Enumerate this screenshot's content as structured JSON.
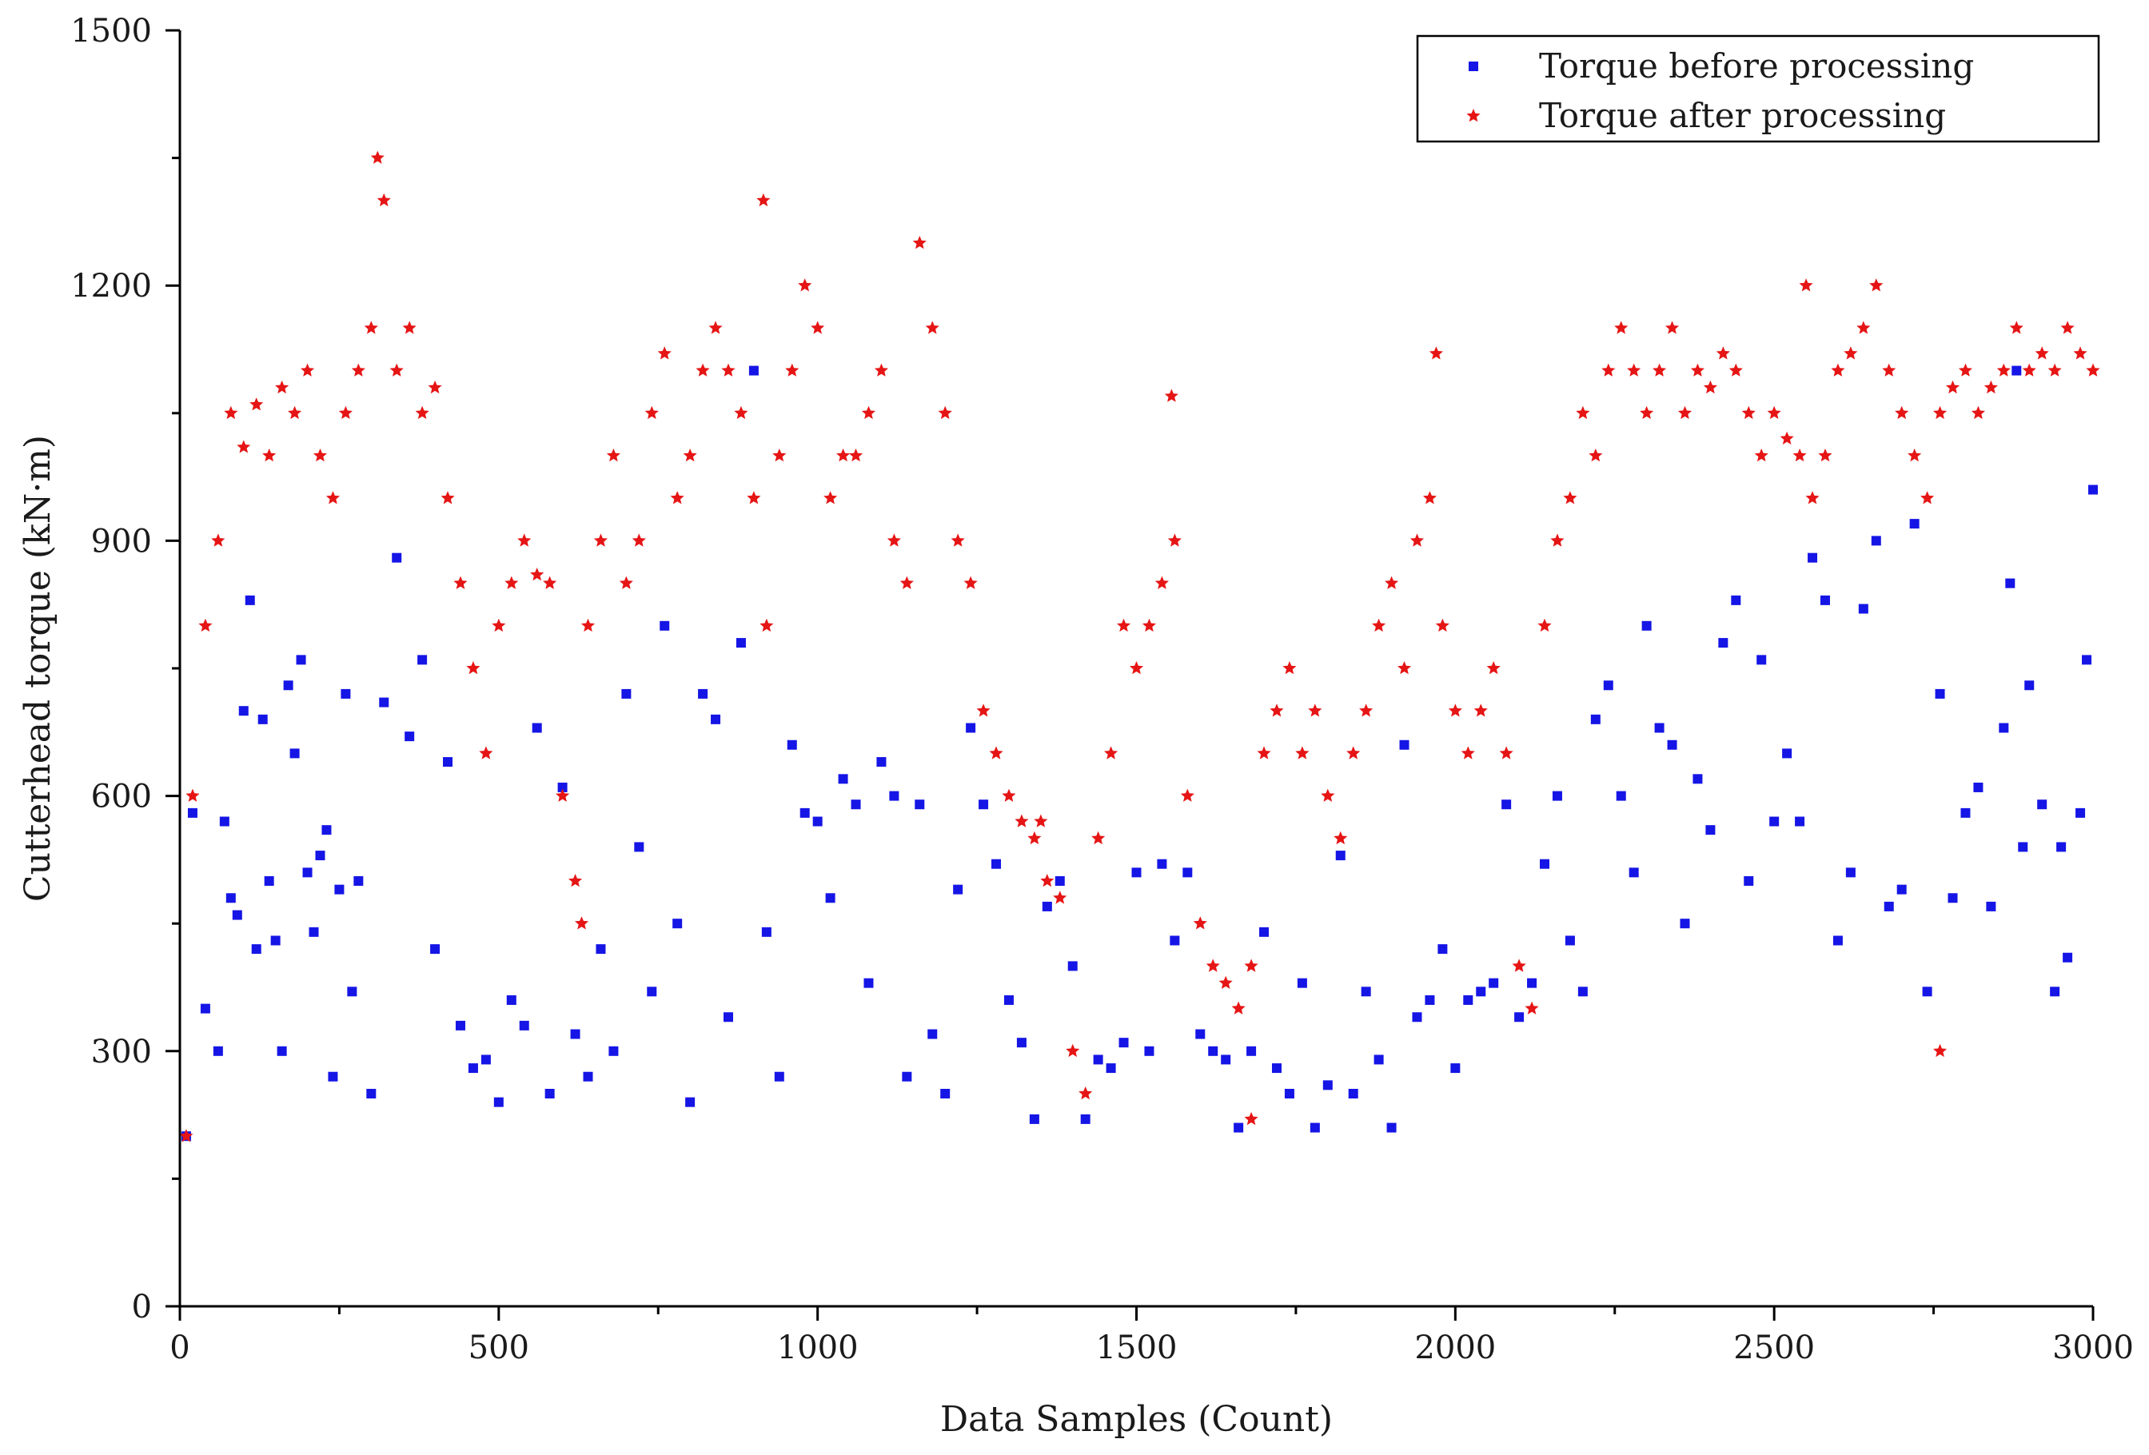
{
  "chart_data": {
    "type": "scatter",
    "title": "",
    "xlabel": "Data Samples (Count)",
    "ylabel": "Cutterhead torque (kN·m)",
    "xlim": [
      0,
      3000
    ],
    "ylim": [
      0,
      1500
    ],
    "xticks": [
      0,
      500,
      1000,
      1500,
      2000,
      2500,
      3000
    ],
    "yticks": [
      0,
      300,
      600,
      900,
      1200,
      1500
    ],
    "grid": false,
    "legend_position": "top-right",
    "series": [
      {
        "name": "Torque before processing",
        "color": "#1515e6",
        "marker": "square",
        "points": [
          [
            10,
            200
          ],
          [
            20,
            580
          ],
          [
            40,
            350
          ],
          [
            60,
            300
          ],
          [
            70,
            570
          ],
          [
            80,
            480
          ],
          [
            90,
            460
          ],
          [
            100,
            700
          ],
          [
            110,
            830
          ],
          [
            120,
            420
          ],
          [
            130,
            690
          ],
          [
            140,
            500
          ],
          [
            150,
            430
          ],
          [
            160,
            300
          ],
          [
            170,
            730
          ],
          [
            180,
            650
          ],
          [
            190,
            760
          ],
          [
            200,
            510
          ],
          [
            210,
            440
          ],
          [
            220,
            530
          ],
          [
            230,
            560
          ],
          [
            240,
            270
          ],
          [
            250,
            490
          ],
          [
            260,
            720
          ],
          [
            270,
            370
          ],
          [
            280,
            500
          ],
          [
            300,
            250
          ],
          [
            320,
            710
          ],
          [
            340,
            880
          ],
          [
            360,
            670
          ],
          [
            380,
            760
          ],
          [
            400,
            420
          ],
          [
            420,
            640
          ],
          [
            440,
            330
          ],
          [
            460,
            280
          ],
          [
            480,
            290
          ],
          [
            500,
            240
          ],
          [
            520,
            360
          ],
          [
            540,
            330
          ],
          [
            560,
            680
          ],
          [
            580,
            250
          ],
          [
            600,
            610
          ],
          [
            620,
            320
          ],
          [
            640,
            270
          ],
          [
            660,
            420
          ],
          [
            680,
            300
          ],
          [
            700,
            720
          ],
          [
            720,
            540
          ],
          [
            740,
            370
          ],
          [
            760,
            800
          ],
          [
            780,
            450
          ],
          [
            800,
            240
          ],
          [
            820,
            720
          ],
          [
            840,
            690
          ],
          [
            860,
            340
          ],
          [
            880,
            780
          ],
          [
            900,
            1100
          ],
          [
            920,
            440
          ],
          [
            940,
            270
          ],
          [
            960,
            660
          ],
          [
            980,
            580
          ],
          [
            1000,
            570
          ],
          [
            1020,
            480
          ],
          [
            1040,
            620
          ],
          [
            1060,
            590
          ],
          [
            1080,
            380
          ],
          [
            1100,
            640
          ],
          [
            1120,
            600
          ],
          [
            1140,
            270
          ],
          [
            1160,
            590
          ],
          [
            1180,
            320
          ],
          [
            1200,
            250
          ],
          [
            1220,
            490
          ],
          [
            1240,
            680
          ],
          [
            1260,
            590
          ],
          [
            1280,
            520
          ],
          [
            1300,
            360
          ],
          [
            1320,
            310
          ],
          [
            1340,
            220
          ],
          [
            1360,
            470
          ],
          [
            1380,
            500
          ],
          [
            1400,
            400
          ],
          [
            1420,
            220
          ],
          [
            1440,
            290
          ],
          [
            1460,
            280
          ],
          [
            1480,
            310
          ],
          [
            1500,
            510
          ],
          [
            1520,
            300
          ],
          [
            1540,
            520
          ],
          [
            1560,
            430
          ],
          [
            1580,
            510
          ],
          [
            1600,
            320
          ],
          [
            1620,
            300
          ],
          [
            1640,
            290
          ],
          [
            1660,
            210
          ],
          [
            1680,
            300
          ],
          [
            1700,
            440
          ],
          [
            1720,
            280
          ],
          [
            1740,
            250
          ],
          [
            1760,
            380
          ],
          [
            1780,
            210
          ],
          [
            1800,
            260
          ],
          [
            1820,
            530
          ],
          [
            1840,
            250
          ],
          [
            1860,
            370
          ],
          [
            1880,
            290
          ],
          [
            1900,
            210
          ],
          [
            1920,
            660
          ],
          [
            1940,
            340
          ],
          [
            1960,
            360
          ],
          [
            1980,
            420
          ],
          [
            2000,
            280
          ],
          [
            2020,
            360
          ],
          [
            2040,
            370
          ],
          [
            2060,
            380
          ],
          [
            2080,
            590
          ],
          [
            2100,
            340
          ],
          [
            2120,
            380
          ],
          [
            2140,
            520
          ],
          [
            2160,
            600
          ],
          [
            2180,
            430
          ],
          [
            2200,
            370
          ],
          [
            2220,
            690
          ],
          [
            2240,
            730
          ],
          [
            2260,
            600
          ],
          [
            2280,
            510
          ],
          [
            2300,
            800
          ],
          [
            2320,
            680
          ],
          [
            2340,
            660
          ],
          [
            2360,
            450
          ],
          [
            2380,
            620
          ],
          [
            2400,
            560
          ],
          [
            2420,
            780
          ],
          [
            2440,
            830
          ],
          [
            2460,
            500
          ],
          [
            2480,
            760
          ],
          [
            2500,
            570
          ],
          [
            2520,
            650
          ],
          [
            2540,
            570
          ],
          [
            2560,
            880
          ],
          [
            2580,
            830
          ],
          [
            2600,
            430
          ],
          [
            2620,
            510
          ],
          [
            2640,
            820
          ],
          [
            2660,
            900
          ],
          [
            2680,
            470
          ],
          [
            2700,
            490
          ],
          [
            2720,
            920
          ],
          [
            2740,
            370
          ],
          [
            2760,
            720
          ],
          [
            2780,
            480
          ],
          [
            2800,
            580
          ],
          [
            2820,
            610
          ],
          [
            2840,
            470
          ],
          [
            2860,
            680
          ],
          [
            2880,
            1100
          ],
          [
            2900,
            730
          ],
          [
            2920,
            590
          ],
          [
            2940,
            370
          ],
          [
            2960,
            410
          ],
          [
            2980,
            580
          ],
          [
            3000,
            960
          ],
          [
            2950,
            540
          ],
          [
            2990,
            760
          ],
          [
            2890,
            540
          ],
          [
            2870,
            850
          ]
        ]
      },
      {
        "name": "Torque after processing",
        "color": "#e61515",
        "marker": "star",
        "points": [
          [
            10,
            200
          ],
          [
            20,
            600
          ],
          [
            40,
            800
          ],
          [
            60,
            900
          ],
          [
            80,
            1050
          ],
          [
            100,
            1010
          ],
          [
            120,
            1060
          ],
          [
            140,
            1000
          ],
          [
            160,
            1080
          ],
          [
            180,
            1050
          ],
          [
            200,
            1100
          ],
          [
            220,
            1000
          ],
          [
            240,
            950
          ],
          [
            260,
            1050
          ],
          [
            280,
            1100
          ],
          [
            300,
            1150
          ],
          [
            320,
            1300
          ],
          [
            340,
            1100
          ],
          [
            360,
            1150
          ],
          [
            380,
            1050
          ],
          [
            400,
            1080
          ],
          [
            420,
            950
          ],
          [
            440,
            850
          ],
          [
            460,
            750
          ],
          [
            480,
            650
          ],
          [
            500,
            800
          ],
          [
            520,
            850
          ],
          [
            540,
            900
          ],
          [
            560,
            860
          ],
          [
            580,
            850
          ],
          [
            600,
            600
          ],
          [
            620,
            500
          ],
          [
            640,
            800
          ],
          [
            660,
            900
          ],
          [
            680,
            1000
          ],
          [
            700,
            850
          ],
          [
            720,
            900
          ],
          [
            740,
            1050
          ],
          [
            760,
            1120
          ],
          [
            780,
            950
          ],
          [
            800,
            1000
          ],
          [
            820,
            1100
          ],
          [
            840,
            1150
          ],
          [
            860,
            1100
          ],
          [
            880,
            1050
          ],
          [
            900,
            950
          ],
          [
            920,
            800
          ],
          [
            940,
            1000
          ],
          [
            960,
            1100
          ],
          [
            980,
            1200
          ],
          [
            1000,
            1150
          ],
          [
            1020,
            950
          ],
          [
            1040,
            1000
          ],
          [
            1060,
            1000
          ],
          [
            1080,
            1050
          ],
          [
            1100,
            1100
          ],
          [
            1120,
            900
          ],
          [
            1140,
            850
          ],
          [
            1160,
            1250
          ],
          [
            1180,
            1150
          ],
          [
            1200,
            1050
          ],
          [
            1220,
            900
          ],
          [
            1240,
            850
          ],
          [
            1260,
            700
          ],
          [
            1280,
            650
          ],
          [
            1300,
            600
          ],
          [
            1320,
            570
          ],
          [
            1340,
            550
          ],
          [
            1360,
            500
          ],
          [
            1380,
            480
          ],
          [
            1400,
            300
          ],
          [
            1420,
            250
          ],
          [
            1440,
            550
          ],
          [
            1460,
            650
          ],
          [
            1480,
            800
          ],
          [
            1500,
            750
          ],
          [
            1520,
            800
          ],
          [
            1540,
            850
          ],
          [
            1560,
            900
          ],
          [
            1580,
            600
          ],
          [
            1600,
            450
          ],
          [
            1620,
            400
          ],
          [
            1640,
            380
          ],
          [
            1660,
            350
          ],
          [
            1680,
            400
          ],
          [
            1700,
            650
          ],
          [
            1720,
            700
          ],
          [
            1740,
            750
          ],
          [
            1760,
            650
          ],
          [
            1780,
            700
          ],
          [
            1800,
            600
          ],
          [
            1820,
            550
          ],
          [
            1840,
            650
          ],
          [
            1860,
            700
          ],
          [
            1880,
            800
          ],
          [
            1900,
            850
          ],
          [
            1920,
            750
          ],
          [
            1940,
            900
          ],
          [
            1960,
            950
          ],
          [
            1980,
            800
          ],
          [
            2000,
            700
          ],
          [
            2020,
            650
          ],
          [
            2040,
            700
          ],
          [
            2060,
            750
          ],
          [
            2080,
            650
          ],
          [
            2100,
            400
          ],
          [
            2120,
            350
          ],
          [
            2140,
            800
          ],
          [
            2160,
            900
          ],
          [
            2180,
            950
          ],
          [
            2200,
            1050
          ],
          [
            2220,
            1000
          ],
          [
            2240,
            1100
          ],
          [
            2260,
            1150
          ],
          [
            2280,
            1100
          ],
          [
            2300,
            1050
          ],
          [
            2320,
            1100
          ],
          [
            2340,
            1150
          ],
          [
            2360,
            1050
          ],
          [
            2380,
            1100
          ],
          [
            2400,
            1080
          ],
          [
            2420,
            1120
          ],
          [
            2440,
            1100
          ],
          [
            2460,
            1050
          ],
          [
            2480,
            1000
          ],
          [
            2500,
            1050
          ],
          [
            2520,
            1020
          ],
          [
            2540,
            1000
          ],
          [
            2560,
            950
          ],
          [
            2580,
            1000
          ],
          [
            2600,
            1100
          ],
          [
            2620,
            1120
          ],
          [
            2640,
            1150
          ],
          [
            2660,
            1200
          ],
          [
            2680,
            1100
          ],
          [
            2700,
            1050
          ],
          [
            2720,
            1000
          ],
          [
            2740,
            950
          ],
          [
            2760,
            1050
          ],
          [
            2780,
            1080
          ],
          [
            2800,
            1100
          ],
          [
            2820,
            1050
          ],
          [
            2840,
            1080
          ],
          [
            2860,
            1100
          ],
          [
            2880,
            1150
          ],
          [
            2900,
            1100
          ],
          [
            2920,
            1120
          ],
          [
            2940,
            1100
          ],
          [
            2960,
            1150
          ],
          [
            2980,
            1120
          ],
          [
            3000,
            1100
          ],
          [
            310,
            1350
          ],
          [
            915,
            1300
          ],
          [
            1555,
            1070
          ],
          [
            1970,
            1120
          ],
          [
            2550,
            1200
          ],
          [
            1350,
            570
          ],
          [
            630,
            450
          ],
          [
            1680,
            220
          ],
          [
            2760,
            300
          ]
        ]
      }
    ]
  }
}
